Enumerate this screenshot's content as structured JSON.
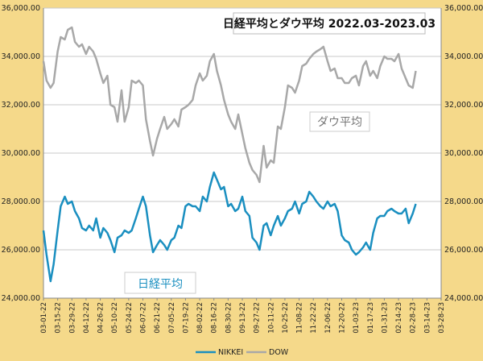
{
  "chart_data": {
    "type": "line",
    "title": "日経平均とダウ平均 2022.03-2023.03",
    "y_left_ticks": [
      "24,000.00",
      "26,000.00",
      "28,000.00",
      "30,000.00",
      "32,000.00",
      "34,000.00",
      "36,000.00"
    ],
    "y_right_ticks": [
      "24,000.00",
      "26,000.00",
      "28,000.00",
      "30,000.00",
      "32,000.00",
      "34,000.00",
      "36,000.00"
    ],
    "ylim": [
      24000,
      36000
    ],
    "x_ticks": [
      "03-01-22",
      "03-15-22",
      "03-29-22",
      "04-12-22",
      "04-26-22",
      "05-10-22",
      "05-24-22",
      "06-07-22",
      "06-21-22",
      "07-05-22",
      "07-19-22",
      "08-02-22",
      "08-16-22",
      "08-30-22",
      "09-13-22",
      "09-27-22",
      "10-11-22",
      "10-25-22",
      "11-08-22",
      "11-22-22",
      "12-06-22",
      "12-20-22",
      "01-03-23",
      "01-17-23",
      "01-31-23",
      "02-14-23",
      "02-28-23",
      "03-14-23",
      "03-28-23"
    ],
    "annotations": {
      "dow": "ダウ平均",
      "nikkei": "日経平均"
    },
    "legend": {
      "placement": "bottom",
      "nikkei": "NIKKEI",
      "dow": "DOW"
    },
    "colors": {
      "nikkei": "#1a8fc0",
      "dow": "#a8a8a8",
      "background": "#f5d98a",
      "plot": "#ffffff"
    },
    "grid": true,
    "series": [
      {
        "name": "DOW",
        "x": [
          "03-01-22",
          "03-04-22",
          "03-08-22",
          "03-11-22",
          "03-15-22",
          "03-18-22",
          "03-22-22",
          "03-25-22",
          "03-29-22",
          "04-01-22",
          "04-05-22",
          "04-08-22",
          "04-12-22",
          "04-15-22",
          "04-19-22",
          "04-22-22",
          "04-26-22",
          "04-29-22",
          "05-03-22",
          "05-06-22",
          "05-10-22",
          "05-13-22",
          "05-17-22",
          "05-20-22",
          "05-24-22",
          "05-27-22",
          "05-31-22",
          "06-03-22",
          "06-07-22",
          "06-10-22",
          "06-14-22",
          "06-17-22",
          "06-21-22",
          "06-24-22",
          "06-28-22",
          "07-01-22",
          "07-05-22",
          "07-08-22",
          "07-12-22",
          "07-15-22",
          "07-19-22",
          "07-22-22",
          "07-26-22",
          "07-29-22",
          "08-02-22",
          "08-05-22",
          "08-09-22",
          "08-12-22",
          "08-16-22",
          "08-19-22",
          "08-23-22",
          "08-26-22",
          "08-30-22",
          "09-02-22",
          "09-06-22",
          "09-09-22",
          "09-13-22",
          "09-16-22",
          "09-20-22",
          "09-23-22",
          "09-27-22",
          "09-30-22",
          "10-04-22",
          "10-07-22",
          "10-11-22",
          "10-14-22",
          "10-18-22",
          "10-21-22",
          "10-25-22",
          "10-28-22",
          "11-01-22",
          "11-04-22",
          "11-08-22",
          "11-11-22",
          "11-15-22",
          "11-18-22",
          "11-22-22",
          "11-25-22",
          "11-29-22",
          "12-02-22",
          "12-06-22",
          "12-09-22",
          "12-13-22",
          "12-16-22",
          "12-20-22",
          "12-23-22",
          "12-27-22",
          "12-30-22",
          "01-03-23",
          "01-06-23",
          "01-10-23",
          "01-13-23",
          "01-17-23",
          "01-20-23",
          "01-24-23",
          "01-27-23",
          "01-31-23",
          "02-03-23",
          "02-07-23",
          "02-10-23",
          "02-14-23",
          "02-17-23",
          "02-21-23",
          "02-24-23",
          "02-28-23",
          "03-03-23"
        ],
        "values": [
          33800,
          33000,
          32700,
          32900,
          34200,
          34800,
          34700,
          35100,
          35200,
          34600,
          34400,
          34500,
          34100,
          34400,
          34200,
          33900,
          33300,
          32900,
          33200,
          32000,
          31900,
          31300,
          32600,
          31300,
          31900,
          33000,
          32900,
          33000,
          32800,
          31400,
          30500,
          29900,
          30600,
          31000,
          31500,
          31000,
          31200,
          31400,
          31100,
          31800,
          31900,
          32000,
          32200,
          32800,
          33300,
          33000,
          33200,
          33800,
          34100,
          33400,
          32800,
          32200,
          31600,
          31300,
          31000,
          31600,
          30800,
          30200,
          29600,
          29300,
          29100,
          28800,
          30300,
          29400,
          29700,
          29600,
          31100,
          31000,
          31900,
          32800,
          32700,
          32500,
          33000,
          33600,
          33700,
          33900,
          34100,
          34200,
          34300,
          34400,
          33800,
          33400,
          33500,
          33100,
          33100,
          32900,
          32900,
          33100,
          33200,
          32800,
          33600,
          33800,
          33200,
          33400,
          33100,
          33600,
          34000,
          33900,
          33900,
          33800,
          34100,
          33500,
          33100,
          32800,
          32700,
          33400
        ]
      },
      {
        "name": "NIKKEI",
        "x": [
          "03-01-22",
          "03-04-22",
          "03-08-22",
          "03-11-22",
          "03-15-22",
          "03-18-22",
          "03-22-22",
          "03-25-22",
          "03-29-22",
          "04-01-22",
          "04-05-22",
          "04-08-22",
          "04-12-22",
          "04-15-22",
          "04-19-22",
          "04-22-22",
          "04-26-22",
          "04-29-22",
          "05-03-22",
          "05-06-22",
          "05-10-22",
          "05-13-22",
          "05-17-22",
          "05-20-22",
          "05-24-22",
          "05-27-22",
          "05-31-22",
          "06-03-22",
          "06-07-22",
          "06-10-22",
          "06-14-22",
          "06-17-22",
          "06-21-22",
          "06-24-22",
          "06-28-22",
          "07-01-22",
          "07-05-22",
          "07-08-22",
          "07-12-22",
          "07-15-22",
          "07-19-22",
          "07-22-22",
          "07-26-22",
          "07-29-22",
          "08-02-22",
          "08-05-22",
          "08-09-22",
          "08-12-22",
          "08-16-22",
          "08-19-22",
          "08-23-22",
          "08-26-22",
          "08-30-22",
          "09-02-22",
          "09-06-22",
          "09-09-22",
          "09-13-22",
          "09-16-22",
          "09-20-22",
          "09-23-22",
          "09-27-22",
          "09-30-22",
          "10-04-22",
          "10-07-22",
          "10-11-22",
          "10-14-22",
          "10-18-22",
          "10-21-22",
          "10-25-22",
          "10-28-22",
          "11-01-22",
          "11-04-22",
          "11-08-22",
          "11-11-22",
          "11-15-22",
          "11-18-22",
          "11-22-22",
          "11-25-22",
          "11-29-22",
          "12-02-22",
          "12-06-22",
          "12-09-22",
          "12-13-22",
          "12-16-22",
          "12-20-22",
          "12-23-22",
          "12-27-22",
          "12-30-22",
          "01-03-23",
          "01-06-23",
          "01-10-23",
          "01-13-23",
          "01-17-23",
          "01-20-23",
          "01-24-23",
          "01-27-23",
          "01-31-23",
          "02-03-23",
          "02-07-23",
          "02-10-23",
          "02-14-23",
          "02-17-23",
          "02-21-23",
          "02-24-23",
          "02-28-23",
          "03-03-23"
        ],
        "values": [
          26800,
          25800,
          24700,
          25400,
          26800,
          27800,
          28200,
          27900,
          28000,
          27600,
          27300,
          26900,
          26800,
          27000,
          26800,
          27300,
          26500,
          26900,
          26700,
          26400,
          25900,
          26500,
          26600,
          26800,
          26700,
          26800,
          27300,
          27700,
          28200,
          27800,
          26600,
          25900,
          26200,
          26400,
          26200,
          26000,
          26400,
          26500,
          27000,
          26900,
          27800,
          27900,
          27800,
          27800,
          27600,
          28200,
          28000,
          28600,
          29200,
          28900,
          28500,
          28600,
          27800,
          27900,
          27600,
          27700,
          28200,
          27600,
          27400,
          26500,
          26300,
          26000,
          27000,
          27100,
          26600,
          27000,
          27400,
          27000,
          27300,
          27600,
          27700,
          28000,
          27500,
          27900,
          28000,
          28400,
          28200,
          28000,
          27800,
          27700,
          28000,
          27800,
          27900,
          27600,
          26600,
          26400,
          26300,
          26000,
          25800,
          25900,
          26100,
          26300,
          26000,
          26700,
          27300,
          27400,
          27400,
          27600,
          27700,
          27600,
          27500,
          27500,
          27700,
          27100,
          27500,
          27900
        ]
      }
    ]
  }
}
